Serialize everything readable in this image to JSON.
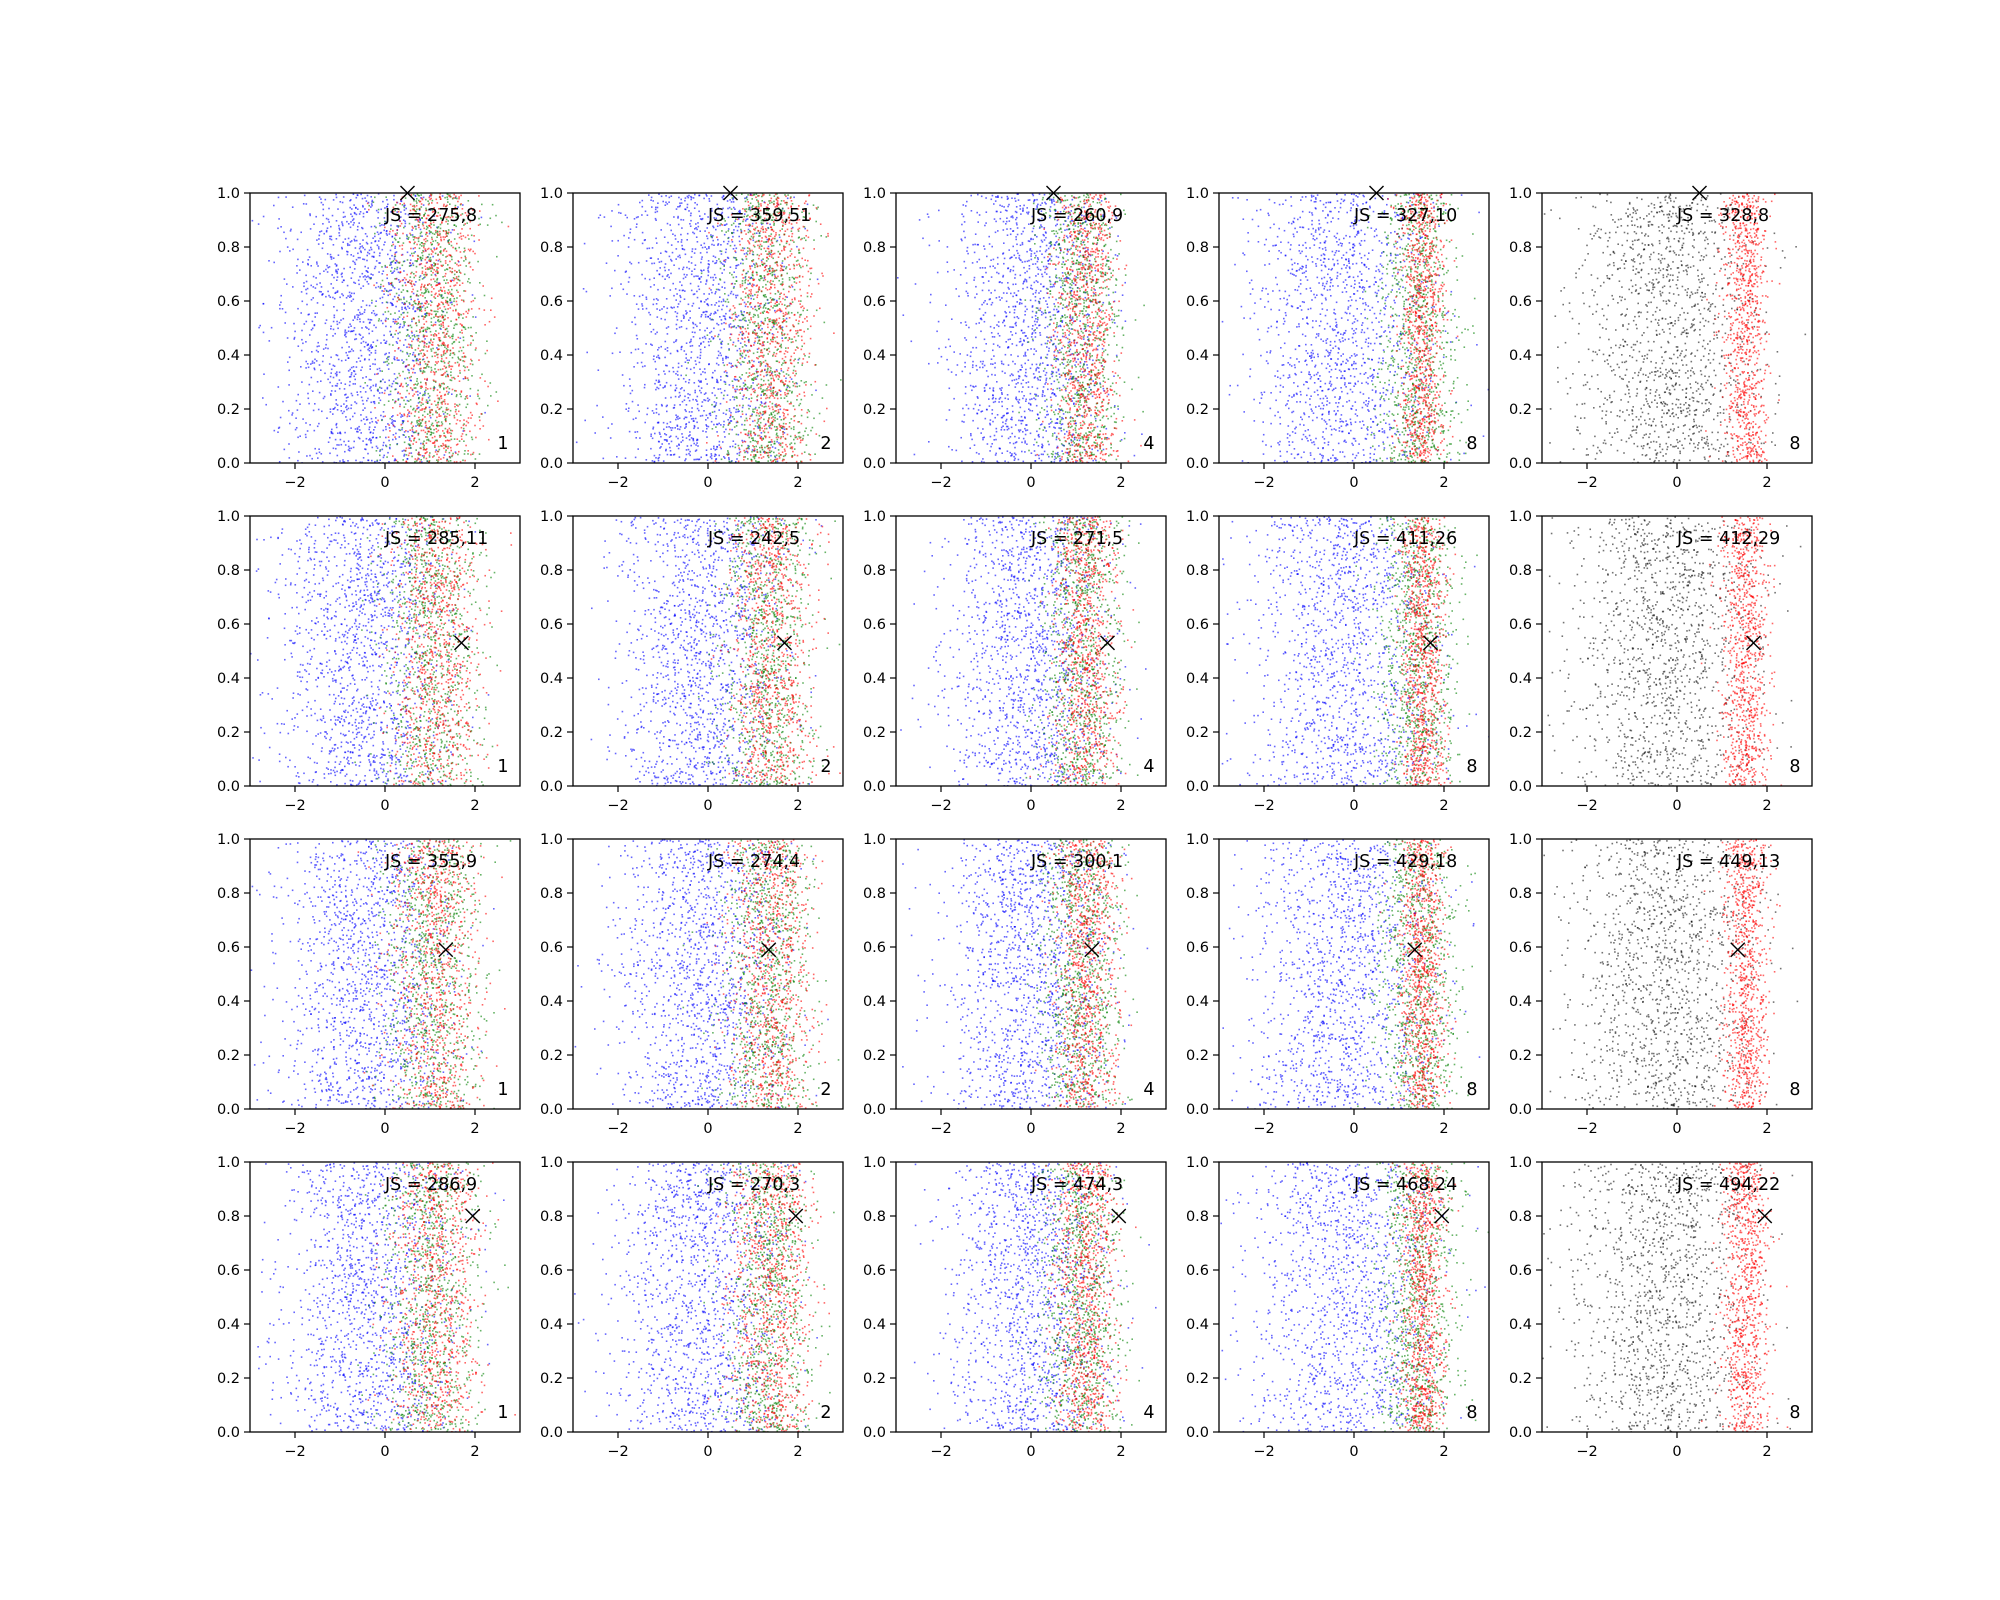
{
  "chart_data": {
    "type": "scatter",
    "layout": "4x5 grid of subplots",
    "xlim": [
      -3,
      3
    ],
    "ylim": [
      0,
      1
    ],
    "x_ticks": [
      "−2",
      "0",
      "2"
    ],
    "y_ticks": [
      "0.0",
      "0.2",
      "0.4",
      "0.6",
      "0.8",
      "1.0"
    ],
    "colors": {
      "blue": "#0000ff",
      "green": "#008000",
      "red": "#ff0000",
      "black": "#000000"
    },
    "panels": [
      {
        "row": 0,
        "col": 0,
        "js_label": "JS = 275,8",
        "number_label": "1",
        "marker": {
          "x": 0.5,
          "y": 1.0
        },
        "series": [
          "blue",
          "green",
          "red"
        ]
      },
      {
        "row": 0,
        "col": 1,
        "js_label": "JS = 359,51",
        "number_label": "2",
        "marker": {
          "x": 0.5,
          "y": 1.0
        },
        "series": [
          "blue",
          "green",
          "red"
        ]
      },
      {
        "row": 0,
        "col": 2,
        "js_label": "JS = 260,9",
        "number_label": "4",
        "marker": {
          "x": 0.5,
          "y": 1.0
        },
        "series": [
          "blue",
          "green",
          "red"
        ]
      },
      {
        "row": 0,
        "col": 3,
        "js_label": "JS = 327,10",
        "number_label": "8",
        "marker": {
          "x": 0.5,
          "y": 1.0
        },
        "series": [
          "blue",
          "green",
          "red"
        ]
      },
      {
        "row": 0,
        "col": 4,
        "js_label": "JS = 328,8",
        "number_label": "8",
        "marker": {
          "x": 0.5,
          "y": 1.0
        },
        "series": [
          "black",
          "red"
        ]
      },
      {
        "row": 1,
        "col": 0,
        "js_label": "JS = 285,11",
        "number_label": "1",
        "marker": {
          "x": 1.7,
          "y": 0.53
        },
        "series": [
          "blue",
          "green",
          "red"
        ]
      },
      {
        "row": 1,
        "col": 1,
        "js_label": "JS = 242,5",
        "number_label": "2",
        "marker": {
          "x": 1.7,
          "y": 0.53
        },
        "series": [
          "blue",
          "green",
          "red"
        ]
      },
      {
        "row": 1,
        "col": 2,
        "js_label": "JS = 271,5",
        "number_label": "4",
        "marker": {
          "x": 1.7,
          "y": 0.53
        },
        "series": [
          "blue",
          "green",
          "red"
        ]
      },
      {
        "row": 1,
        "col": 3,
        "js_label": "JS = 411,26",
        "number_label": "8",
        "marker": {
          "x": 1.7,
          "y": 0.53
        },
        "series": [
          "blue",
          "green",
          "red"
        ]
      },
      {
        "row": 1,
        "col": 4,
        "js_label": "JS = 412,29",
        "number_label": "8",
        "marker": {
          "x": 1.7,
          "y": 0.53
        },
        "series": [
          "black",
          "red"
        ]
      },
      {
        "row": 2,
        "col": 0,
        "js_label": "JS = 355,9",
        "number_label": "1",
        "marker": {
          "x": 1.35,
          "y": 0.59
        },
        "series": [
          "blue",
          "green",
          "red"
        ]
      },
      {
        "row": 2,
        "col": 1,
        "js_label": "JS = 274,4",
        "number_label": "2",
        "marker": {
          "x": 1.35,
          "y": 0.59
        },
        "series": [
          "blue",
          "green",
          "red"
        ]
      },
      {
        "row": 2,
        "col": 2,
        "js_label": "JS = 300,1",
        "number_label": "4",
        "marker": {
          "x": 1.35,
          "y": 0.59
        },
        "series": [
          "blue",
          "green",
          "red"
        ]
      },
      {
        "row": 2,
        "col": 3,
        "js_label": "JS = 429,18",
        "number_label": "8",
        "marker": {
          "x": 1.35,
          "y": 0.59
        },
        "series": [
          "blue",
          "green",
          "red"
        ]
      },
      {
        "row": 2,
        "col": 4,
        "js_label": "JS = 449,13",
        "number_label": "8",
        "marker": {
          "x": 1.35,
          "y": 0.59
        },
        "series": [
          "black",
          "red"
        ]
      },
      {
        "row": 3,
        "col": 0,
        "js_label": "JS = 286,9",
        "number_label": "1",
        "marker": {
          "x": 1.95,
          "y": 0.8
        },
        "series": [
          "blue",
          "green",
          "red"
        ]
      },
      {
        "row": 3,
        "col": 1,
        "js_label": "JS = 270,3",
        "number_label": "2",
        "marker": {
          "x": 1.95,
          "y": 0.8
        },
        "series": [
          "blue",
          "green",
          "red"
        ]
      },
      {
        "row": 3,
        "col": 2,
        "js_label": "JS = 474,3",
        "number_label": "4",
        "marker": {
          "x": 1.95,
          "y": 0.8
        },
        "series": [
          "blue",
          "green",
          "red"
        ]
      },
      {
        "row": 3,
        "col": 3,
        "js_label": "JS = 468,24",
        "number_label": "8",
        "marker": {
          "x": 1.95,
          "y": 0.8
        },
        "series": [
          "blue",
          "green",
          "red"
        ]
      },
      {
        "row": 3,
        "col": 4,
        "js_label": "JS = 494,22",
        "number_label": "8",
        "marker": {
          "x": 1.95,
          "y": 0.8
        },
        "series": [
          "black",
          "red"
        ]
      }
    ]
  }
}
